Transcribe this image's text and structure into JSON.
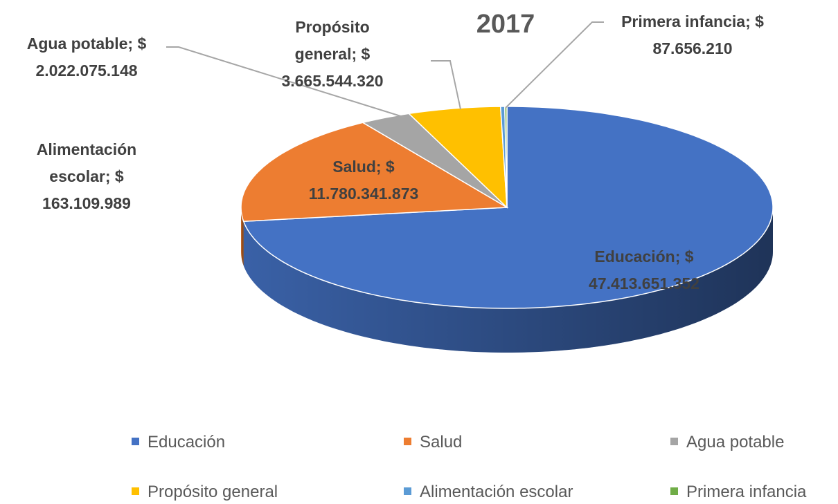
{
  "chart_data": {
    "type": "pie",
    "title": "2017",
    "categories": [
      "Educación",
      "Salud",
      "Agua potable",
      "Propósito general",
      "Alimentación escolar",
      "Primera infancia"
    ],
    "values": [
      47413651352,
      11780341873,
      2022075148,
      3665544320,
      163109989,
      87656210
    ],
    "value_labels": [
      "Educación; $ 47.413.651.352",
      "Salud; $ 11.780.341.873",
      "Agua potable; $ 2.022.075.148",
      "Propósito general; $ 3.665.544.320",
      "Alimentación escolar; $ 163.109.989",
      "Primera infancia; $ 87.656.210"
    ],
    "colors": [
      "#4472c4",
      "#ed7d31",
      "#a5a5a5",
      "#ffc000",
      "#5b9bd5",
      "#70ad47"
    ],
    "legend": "bottom"
  }
}
